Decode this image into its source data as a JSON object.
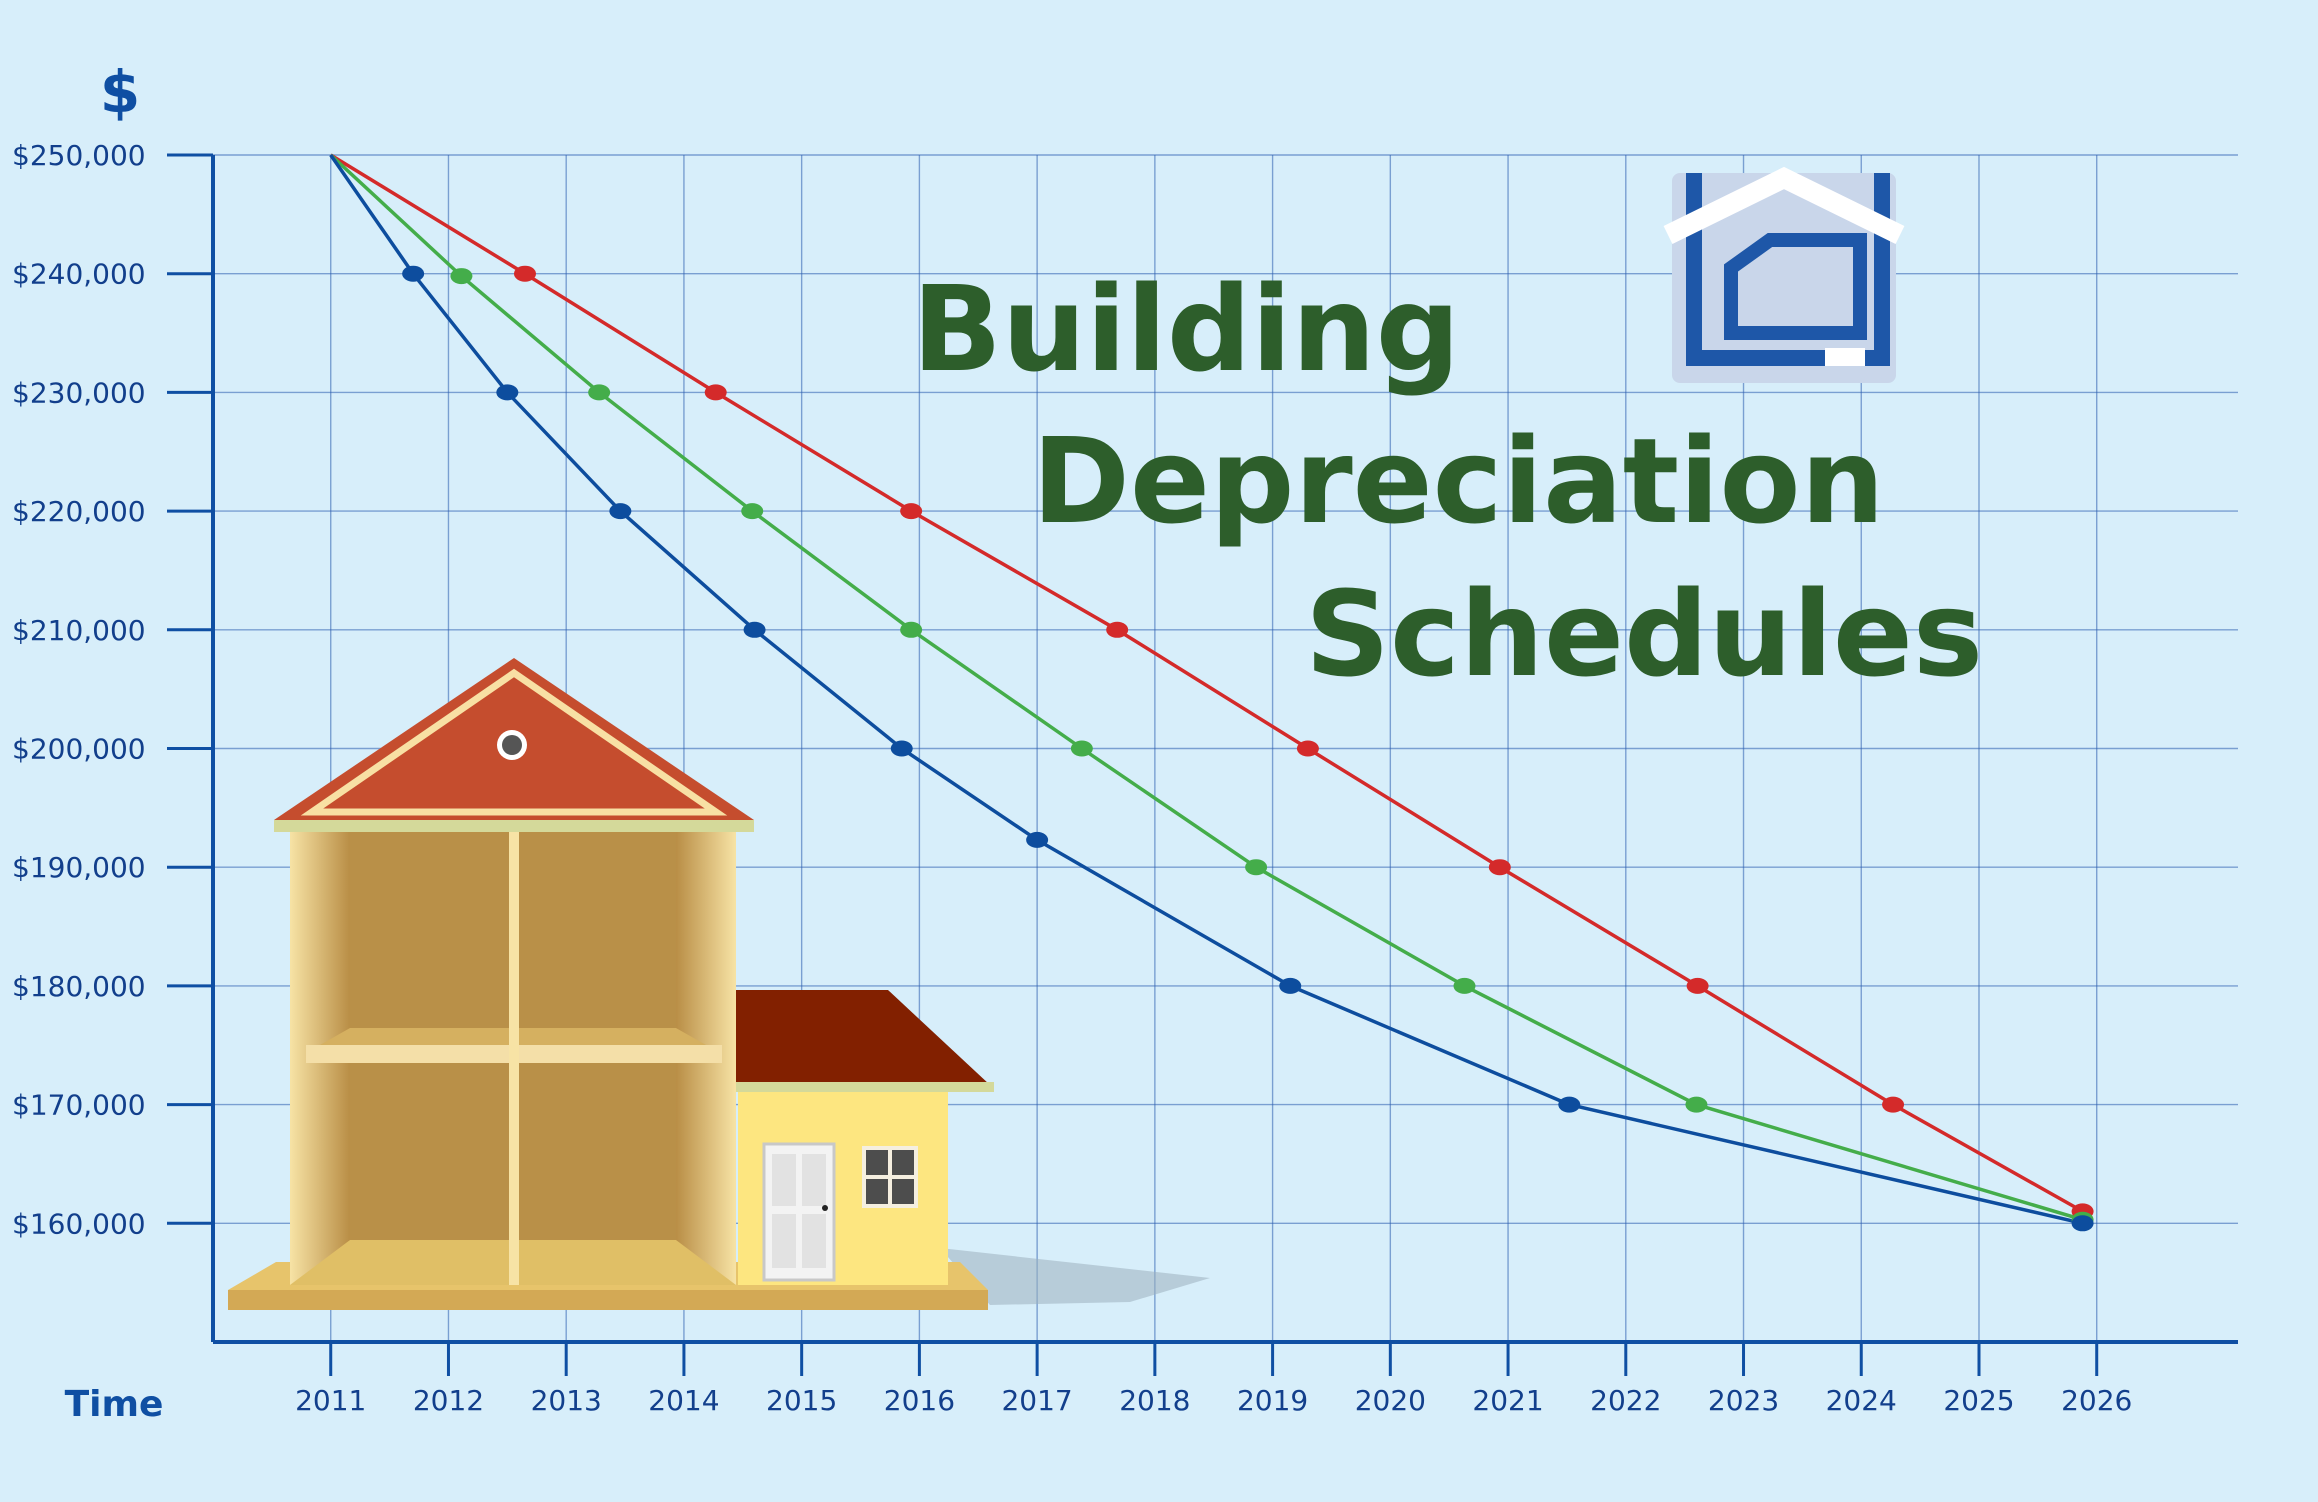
{
  "chart_data": {
    "type": "line",
    "title_lines": [
      "Building",
      "Depreciation",
      "Schedules"
    ],
    "xlabel": "Time",
    "ylabel": "$",
    "x_ticks": [
      2011,
      2012,
      2013,
      2014,
      2015,
      2016,
      2017,
      2018,
      2019,
      2020,
      2021,
      2022,
      2023,
      2024,
      2025,
      2026
    ],
    "y_ticks": [
      160000,
      170000,
      180000,
      190000,
      200000,
      210000,
      220000,
      230000,
      240000,
      250000
    ],
    "y_tick_labels": [
      "$160,000",
      "$170,000",
      "$180,000",
      "$190,000",
      "$200,000",
      "$210,000",
      "$220,000",
      "$230,000",
      "$240,000",
      "$250,000"
    ],
    "xlim": [
      2010.0,
      2027.2
    ],
    "ylim": [
      150000,
      250000
    ],
    "grid": true,
    "series": [
      {
        "color": "#d42a2a",
        "points": [
          [
            2011.0,
            250000
          ],
          [
            2012.65,
            240000
          ],
          [
            2014.27,
            230000
          ],
          [
            2015.93,
            220000
          ],
          [
            2017.68,
            210000
          ],
          [
            2019.3,
            200000
          ],
          [
            2020.93,
            190000
          ],
          [
            2022.61,
            180000
          ],
          [
            2024.27,
            170000
          ],
          [
            2025.88,
            161000
          ]
        ]
      },
      {
        "color": "#44ad4a",
        "points": [
          [
            2011.0,
            250000
          ],
          [
            2012.11,
            239800
          ],
          [
            2013.28,
            230000
          ],
          [
            2014.58,
            220000
          ],
          [
            2015.93,
            210000
          ],
          [
            2017.38,
            200000
          ],
          [
            2018.86,
            190000
          ],
          [
            2020.63,
            180000
          ],
          [
            2022.6,
            170000
          ],
          [
            2025.88,
            160300
          ]
        ]
      },
      {
        "color": "#0d4d9e",
        "points": [
          [
            2011.0,
            250000
          ],
          [
            2011.7,
            240000
          ],
          [
            2012.5,
            230000
          ],
          [
            2013.46,
            220000
          ],
          [
            2014.6,
            210000
          ],
          [
            2015.85,
            200000
          ],
          [
            2017.0,
            192300
          ],
          [
            2019.15,
            180000
          ],
          [
            2021.52,
            170000
          ],
          [
            2025.88,
            160000
          ]
        ]
      }
    ]
  },
  "logo": {
    "name": "home-document-logo",
    "colors": [
      "#1e57a8",
      "#c9d6ea",
      "#ffffff"
    ]
  },
  "illustration": {
    "name": "house-cutaway-illustration"
  }
}
